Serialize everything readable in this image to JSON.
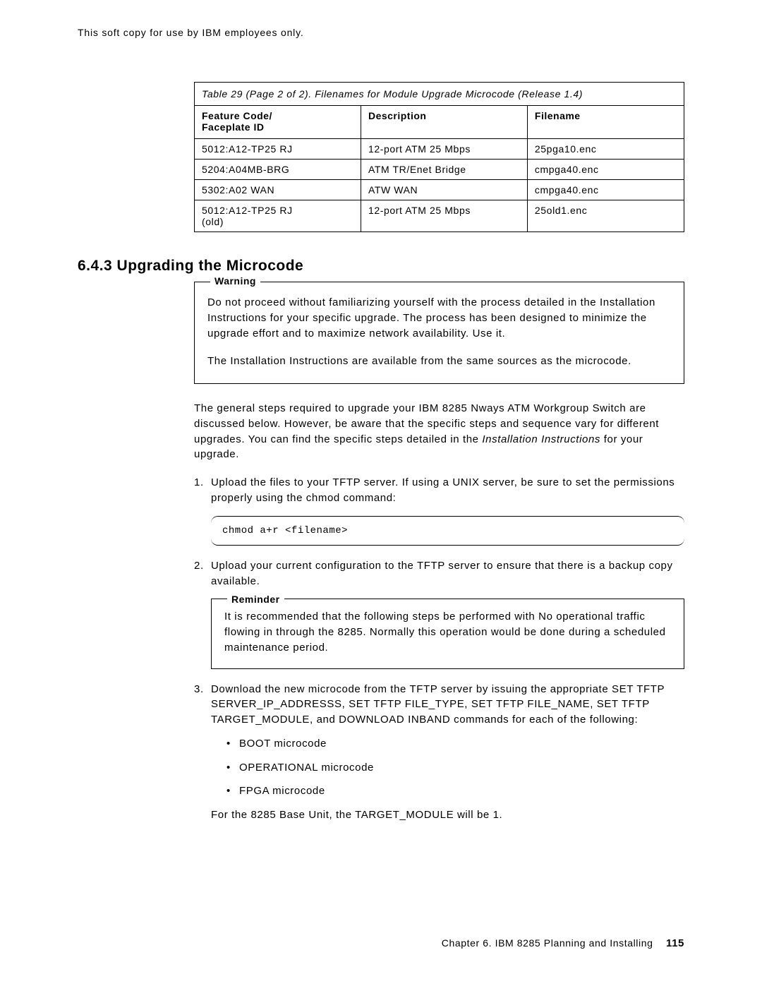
{
  "header_note": "This soft copy for use by IBM employees only.",
  "table": {
    "caption": "Table 29 (Page 2 of 2). Filenames for Module Upgrade Microcode (Release 1.4)",
    "headers": {
      "c1a": "Feature Code/",
      "c1b": "Faceplate ID",
      "c2": "Description",
      "c3": "Filename"
    },
    "rows": [
      {
        "c1": "5012:A12-TP25 RJ",
        "c2": "12-port ATM 25 Mbps",
        "c3": "25pga10.enc"
      },
      {
        "c1": "5204:A04MB-BRG",
        "c2": "ATM TR/Enet Bridge",
        "c3": "cmpga40.enc"
      },
      {
        "c1": "5302:A02 WAN",
        "c2": "ATW WAN",
        "c3": "cmpga40.enc"
      },
      {
        "c1a": "5012:A12-TP25 RJ",
        "c1b": "(old)",
        "c2": "12-port ATM 25 Mbps",
        "c3": "25old1.enc"
      }
    ]
  },
  "section_heading": "6.4.3  Upgrading the Microcode",
  "warning": {
    "title": "Warning",
    "p1": "Do not proceed without familiarizing yourself with the process detailed in the Installation Instructions for your specific upgrade.  The process has been designed to minimize the upgrade effort and to maximize network availability. Use it.",
    "p2": "The Installation Instructions are available from the same sources as the microcode."
  },
  "intro_a": "The general steps required to upgrade your IBM 8285 Nways ATM Workgroup Switch are discussed below.  However, be aware that the specific steps and sequence vary for different upgrades.  You can find the specific steps detailed in the ",
  "intro_italic": "Installation Instructions",
  "intro_b": " for your upgrade.",
  "steps": {
    "s1": "Upload the files to your TFTP server.  If using a UNIX server, be sure to set the permissions properly using the chmod command:",
    "code": "chmod a+r <filename>",
    "s2": "Upload your current configuration to the TFTP server to ensure that there is a backup copy available.",
    "reminder_title": "Reminder",
    "reminder_text": "It is recommended that the following steps be performed with No operational traffic flowing in through the 8285.  Normally this operation would be done during a scheduled maintenance period.",
    "s3": "Download the new microcode from the TFTP server by issuing the appropriate SET TFTP SERVER_IP_ADDRESSS, SET TFTP FILE_TYPE, SET TFTP FILE_NAME, SET TFTP TARGET_MODULE, and DOWNLOAD INBAND commands for each of the following:",
    "b1": "BOOT microcode",
    "b2": "OPERATIONAL microcode",
    "b3": "FPGA microcode",
    "s3_after": "For the 8285 Base Unit, the TARGET_MODULE will be 1."
  },
  "footer": {
    "chapter": "Chapter 6.  IBM 8285 Planning and Installing",
    "page": "115"
  }
}
